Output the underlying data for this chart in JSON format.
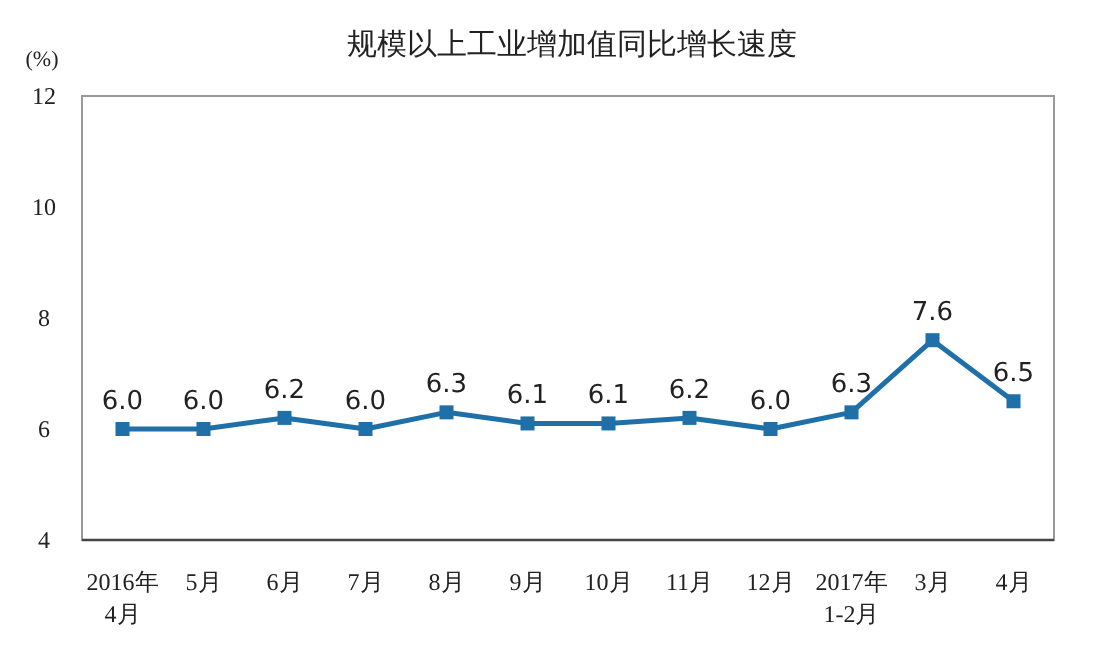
{
  "chart_data": {
    "type": "line",
    "title": "规模以上工业增加值同比增长速度",
    "ylabel": "(%)",
    "categories": [
      "2016年\n4月",
      "5月",
      "6月",
      "7月",
      "8月",
      "9月",
      "10月",
      "11月",
      "12月",
      "2017年\n1-2月",
      "3月",
      "4月"
    ],
    "series": [
      {
        "color": "#1f6fa8",
        "values": [
          6.0,
          6.0,
          6.2,
          6.0,
          6.3,
          6.1,
          6.1,
          6.2,
          6.0,
          6.3,
          7.6,
          6.5
        ],
        "value_labels": [
          "6.0",
          "6.0",
          "6.2",
          "6.0",
          "6.3",
          "6.1",
          "6.1",
          "6.2",
          "6.0",
          "6.3",
          "7.6",
          "6.5"
        ]
      }
    ],
    "ylim": [
      4,
      12
    ],
    "yticks": [
      4,
      6,
      8,
      10,
      12
    ],
    "marker": "square",
    "grid": false
  }
}
